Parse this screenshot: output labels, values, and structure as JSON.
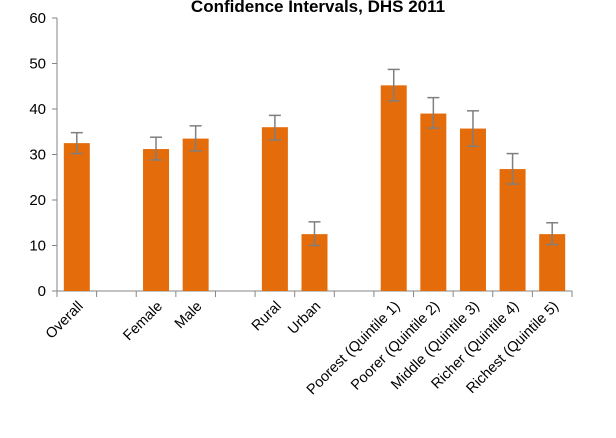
{
  "chart_data": {
    "type": "bar",
    "title": "Confidence Intervals, DHS 2011",
    "xlabel": "",
    "ylabel": "",
    "ylim": [
      0,
      60
    ],
    "yticks": [
      0,
      10,
      20,
      30,
      40,
      50,
      60
    ],
    "grid": false,
    "legend": "none",
    "bar_color": "#E46C0A",
    "error_bar_color": "#7F7F7F",
    "categories": [
      "Overall",
      "",
      "Female",
      "Male",
      "",
      "Rural",
      "Urban",
      "",
      "Poorest (Quintile 1)",
      "Poorer (Quintile 2)",
      "Middle (Quintile 3)",
      "Richer (Quintile 4)",
      "Richest (Quintile 5)"
    ],
    "values": [
      32.5,
      null,
      31.2,
      33.5,
      null,
      36.0,
      12.5,
      null,
      45.2,
      39.0,
      35.7,
      26.8,
      12.5
    ],
    "error_low": [
      30.2,
      null,
      28.8,
      30.8,
      null,
      33.2,
      10.0,
      null,
      41.8,
      35.8,
      31.8,
      23.5,
      10.2
    ],
    "error_high": [
      34.8,
      null,
      33.8,
      36.3,
      null,
      38.6,
      15.2,
      null,
      48.7,
      42.5,
      39.6,
      30.2,
      15.0
    ]
  }
}
